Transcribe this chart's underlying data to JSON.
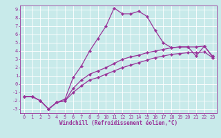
{
  "xlabel": "Windchill (Refroidissement éolien,°C)",
  "bg_color": "#c8eaea",
  "line_color": "#993399",
  "grid_color": "#ffffff",
  "spine_color": "#993399",
  "xlim": [
    -0.5,
    23.5
  ],
  "ylim": [
    -3.5,
    9.5
  ],
  "xticks": [
    0,
    1,
    2,
    3,
    4,
    5,
    6,
    7,
    8,
    9,
    10,
    11,
    12,
    13,
    14,
    15,
    16,
    17,
    18,
    19,
    20,
    21,
    22,
    23
  ],
  "yticks": [
    -3,
    -2,
    -1,
    0,
    1,
    2,
    3,
    4,
    5,
    6,
    7,
    8,
    9
  ],
  "line_peaked_x": [
    0,
    1,
    2,
    3,
    4,
    5,
    6,
    7,
    8,
    9,
    10,
    11,
    12,
    13,
    14,
    15,
    16,
    17,
    18,
    19,
    20,
    21,
    22,
    23
  ],
  "line_peaked_y": [
    -1.5,
    -1.5,
    -2.0,
    -3.0,
    -2.2,
    -1.8,
    0.8,
    2.2,
    4.0,
    5.5,
    7.0,
    9.2,
    8.5,
    8.5,
    8.8,
    8.2,
    6.5,
    5.0,
    4.4,
    4.5,
    4.5,
    3.4,
    4.6,
    3.4
  ],
  "line_mid_x": [
    0,
    1,
    2,
    3,
    4,
    5,
    6,
    7,
    8,
    9,
    10,
    11,
    12,
    13,
    14,
    15,
    16,
    17,
    18,
    19,
    20,
    21,
    22,
    23
  ],
  "line_mid_y": [
    -1.5,
    -1.5,
    -2.0,
    -3.0,
    -2.2,
    -2.0,
    -0.5,
    0.5,
    1.2,
    1.6,
    2.0,
    2.5,
    3.0,
    3.3,
    3.5,
    3.8,
    4.0,
    4.2,
    4.4,
    4.5,
    4.5,
    4.5,
    4.6,
    3.3
  ],
  "line_bot_x": [
    0,
    1,
    2,
    3,
    4,
    5,
    6,
    7,
    8,
    9,
    10,
    11,
    12,
    13,
    14,
    15,
    16,
    17,
    18,
    19,
    20,
    21,
    22,
    23
  ],
  "line_bot_y": [
    -1.5,
    -1.5,
    -2.0,
    -3.0,
    -2.2,
    -2.0,
    -1.0,
    -0.2,
    0.5,
    0.8,
    1.2,
    1.6,
    2.0,
    2.3,
    2.6,
    2.9,
    3.2,
    3.4,
    3.6,
    3.7,
    3.8,
    3.8,
    3.9,
    3.2
  ]
}
